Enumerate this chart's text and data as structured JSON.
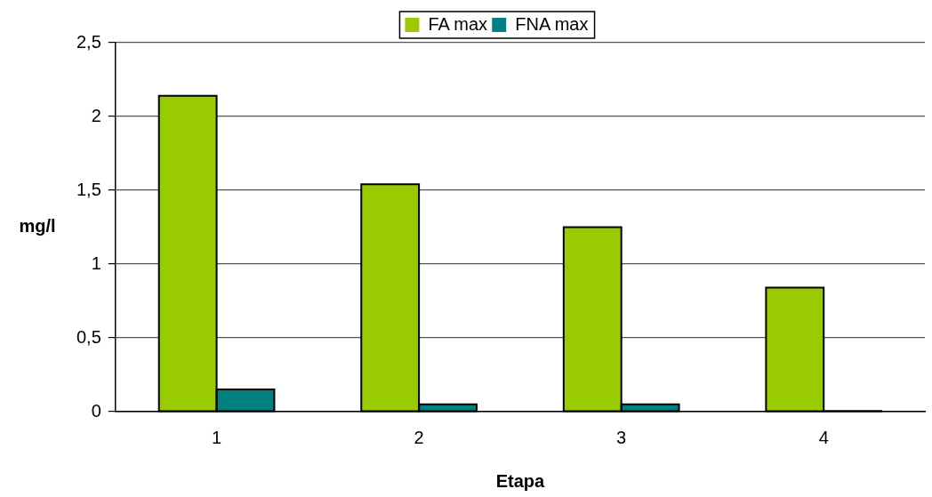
{
  "chart_data": {
    "type": "bar",
    "xlabel": "Etapa",
    "ylabel": "mg/l",
    "categories": [
      "1",
      "2",
      "3",
      "4"
    ],
    "series": [
      {
        "name": "FA max",
        "color": "#99cc00",
        "values": [
          2.14,
          1.54,
          1.25,
          0.84
        ]
      },
      {
        "name": "FNA max",
        "color": "#008080",
        "values": [
          0.15,
          0.05,
          0.05,
          0.005
        ]
      }
    ],
    "ylim": [
      0,
      2.5
    ],
    "yticks": [
      {
        "value": 0,
        "label": "0"
      },
      {
        "value": 0.5,
        "label": "0,5"
      },
      {
        "value": 1,
        "label": "1"
      },
      {
        "value": 1.5,
        "label": "1,5"
      },
      {
        "value": 2,
        "label": "2"
      },
      {
        "value": 2.5,
        "label": "2,5"
      }
    ],
    "grid": "y",
    "legend": "top"
  }
}
